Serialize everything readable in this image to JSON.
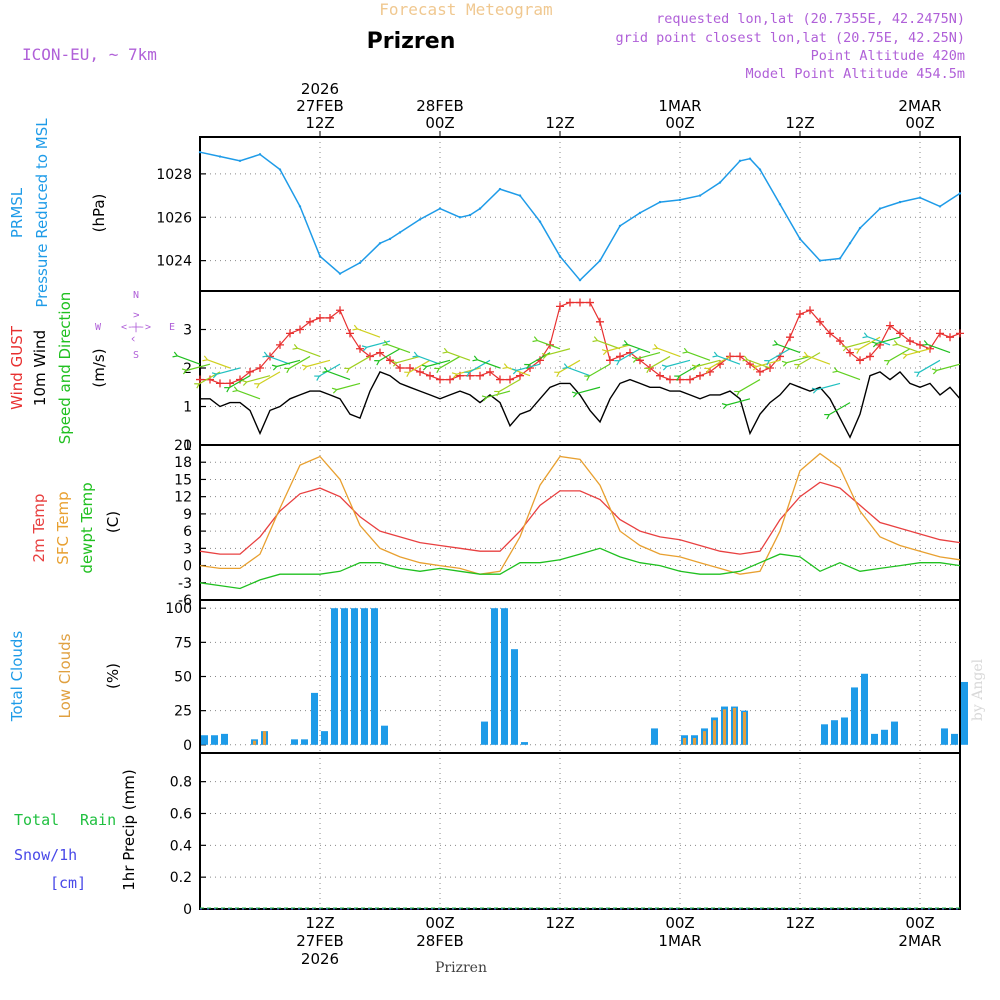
{
  "header": {
    "chart_type": "Forecast Meteogram",
    "location": "Prizren",
    "model": "ICON-EU, ~ 7km",
    "requested": "requested lon,lat (20.7355E, 42.2475N)",
    "grid_point": "grid point closest lon,lat (20.75E, 42.25N)",
    "point_altitude": "Point Altitude 420m",
    "model_altitude": "Model Point Altitude 454.5m",
    "footer_location": "Prizren",
    "watermark": "by Angel"
  },
  "colors": {
    "pressure": "#1e9be8",
    "gust": "#e83030",
    "wind": "#000000",
    "temp2m": "#e84040",
    "sfc": "#e8a030",
    "dewpt": "#20c020",
    "clouds_total": "#1e9be8",
    "clouds_low": "#e0a040",
    "rain": "#20c040",
    "snow": "#4848e8",
    "label_purple": "#b060d8"
  },
  "time_labels": {
    "top": [
      {
        "h": 12,
        "lines": [
          "2026",
          "27FEB",
          "12Z"
        ]
      },
      {
        "h": 24,
        "lines": [
          "28FEB",
          "00Z"
        ]
      },
      {
        "h": 36,
        "lines": [
          "12Z"
        ]
      },
      {
        "h": 48,
        "lines": [
          "1MAR",
          "00Z"
        ]
      },
      {
        "h": 60,
        "lines": [
          "12Z"
        ]
      },
      {
        "h": 72,
        "lines": [
          "2MAR",
          "00Z"
        ]
      }
    ],
    "bottom": [
      {
        "h": 12,
        "lines": [
          "12Z",
          "27FEB",
          "2026"
        ]
      },
      {
        "h": 24,
        "lines": [
          "00Z",
          "28FEB"
        ]
      },
      {
        "h": 36,
        "lines": [
          "12Z"
        ]
      },
      {
        "h": 48,
        "lines": [
          "00Z",
          "1MAR"
        ]
      },
      {
        "h": 60,
        "lines": [
          "12Z"
        ]
      },
      {
        "h": 72,
        "lines": [
          "00Z",
          "2MAR"
        ]
      }
    ]
  },
  "panel_labels": {
    "pressure": {
      "l1": "PRMSL",
      "l2": "Pressure Reduced to MSL",
      "unit": "(hPa)"
    },
    "wind": {
      "l1": "Wind GUST",
      "l2": "10m Wind",
      "l3": "Speed and Direction",
      "unit": "(m/s)",
      "rose_n": "N",
      "rose_s": "S",
      "rose_w": "W",
      "rose_e": "E",
      "rose_ns": "^ | v",
      "rose_we": "<-|->"
    },
    "temp": {
      "l1": "2m Temp",
      "l2": "SFC Temp",
      "l3": "dewpt Temp",
      "unit": "(C)"
    },
    "clouds": {
      "l1": "Total Clouds",
      "l2": "Low Clouds",
      "unit": "(%)"
    },
    "precip": {
      "l1": "Total",
      "l1b": "Rain",
      "l2": "Snow/1h",
      "l3": "[cm]",
      "unit": "1hr Precip (mm)"
    }
  },
  "chart_data": [
    {
      "type": "line",
      "name": "pressure",
      "title": "PRMSL Pressure Reduced to MSL",
      "ylabel": "(hPa)",
      "ylim": [
        1022.6,
        1029.7
      ],
      "yticks": [
        1024,
        1026,
        1028
      ],
      "x_hours": [
        0,
        2,
        4,
        6,
        8,
        10,
        12,
        14,
        16,
        18,
        19,
        20,
        22,
        24,
        26,
        27,
        28,
        30,
        32,
        34,
        36,
        38,
        40,
        42,
        44,
        46,
        48,
        50,
        52,
        54,
        55,
        56,
        58,
        60,
        62,
        64,
        65,
        66,
        68,
        70,
        72,
        74,
        76
      ],
      "values": [
        1029.0,
        1028.8,
        1028.6,
        1028.9,
        1028.2,
        1026.5,
        1024.2,
        1023.4,
        1023.9,
        1024.8,
        1025.0,
        1025.3,
        1025.9,
        1026.4,
        1026.0,
        1026.1,
        1026.4,
        1027.3,
        1027.0,
        1025.8,
        1024.2,
        1023.1,
        1024.0,
        1025.6,
        1026.2,
        1026.7,
        1026.8,
        1027.0,
        1027.6,
        1028.6,
        1028.7,
        1028.2,
        1026.6,
        1025.0,
        1024.0,
        1024.1,
        1024.8,
        1025.5,
        1026.4,
        1026.7,
        1026.9,
        1026.5,
        1027.1
      ]
    },
    {
      "type": "line",
      "name": "wind",
      "title": "Wind GUST / 10m Wind Speed and Direction",
      "ylabel": "(m/s)",
      "ylim": [
        0,
        4
      ],
      "yticks": [
        0,
        1,
        2,
        3
      ],
      "x_hours": [
        0,
        1,
        2,
        3,
        4,
        5,
        6,
        7,
        8,
        9,
        10,
        11,
        12,
        13,
        14,
        15,
        16,
        17,
        18,
        19,
        20,
        21,
        22,
        23,
        24,
        25,
        26,
        27,
        28,
        29,
        30,
        31,
        32,
        33,
        34,
        35,
        36,
        37,
        38,
        39,
        40,
        41,
        42,
        43,
        44,
        45,
        46,
        47,
        48,
        49,
        50,
        51,
        52,
        53,
        54,
        55,
        56,
        57,
        58,
        59,
        60,
        61,
        62,
        63,
        64,
        65,
        66,
        67,
        68,
        69,
        70,
        71,
        72,
        73,
        74,
        75,
        76
      ],
      "series": [
        {
          "name": "Wind GUST",
          "values": [
            1.7,
            1.7,
            1.6,
            1.6,
            1.7,
            1.9,
            2.0,
            2.3,
            2.6,
            2.9,
            3.0,
            3.2,
            3.3,
            3.3,
            3.5,
            2.9,
            2.5,
            2.3,
            2.4,
            2.2,
            2.0,
            2.0,
            1.9,
            1.8,
            1.7,
            1.7,
            1.8,
            1.8,
            1.8,
            1.9,
            1.7,
            1.7,
            1.8,
            2.0,
            2.2,
            2.6,
            3.6,
            3.7,
            3.7,
            3.7,
            3.2,
            2.2,
            2.3,
            2.4,
            2.2,
            2.0,
            1.8,
            1.7,
            1.7,
            1.7,
            1.8,
            1.9,
            2.1,
            2.3,
            2.3,
            2.1,
            1.9,
            2.0,
            2.3,
            2.8,
            3.4,
            3.5,
            3.2,
            2.9,
            2.7,
            2.4,
            2.2,
            2.3,
            2.6,
            3.1,
            2.9,
            2.7,
            2.6,
            2.5,
            2.9,
            2.8,
            2.9
          ]
        },
        {
          "name": "10m Wind",
          "values": [
            1.2,
            1.2,
            1.0,
            1.1,
            1.1,
            0.9,
            0.3,
            0.9,
            1.0,
            1.2,
            1.3,
            1.4,
            1.4,
            1.3,
            1.2,
            0.8,
            0.7,
            1.4,
            1.9,
            1.8,
            1.6,
            1.5,
            1.4,
            1.3,
            1.2,
            1.3,
            1.4,
            1.3,
            1.1,
            1.3,
            1.1,
            0.5,
            0.8,
            0.9,
            1.2,
            1.5,
            1.6,
            1.6,
            1.3,
            0.9,
            0.6,
            1.2,
            1.6,
            1.7,
            1.6,
            1.5,
            1.5,
            1.4,
            1.4,
            1.3,
            1.2,
            1.3,
            1.3,
            1.4,
            1.2,
            0.3,
            0.8,
            1.1,
            1.3,
            1.6,
            1.5,
            1.4,
            1.5,
            1.2,
            0.7,
            0.2,
            0.8,
            1.8,
            1.9,
            1.7,
            1.9,
            1.6,
            1.5,
            1.6,
            1.3,
            1.5,
            1.2
          ]
        }
      ]
    },
    {
      "type": "line",
      "name": "temperature",
      "title": "2m Temp / SFC Temp / dewpt Temp",
      "ylabel": "(C)",
      "ylim": [
        -6,
        21
      ],
      "yticks": [
        -6,
        -3,
        0,
        3,
        6,
        9,
        12,
        15,
        18,
        21
      ],
      "x_hours": [
        0,
        2,
        4,
        6,
        8,
        10,
        12,
        14,
        16,
        18,
        20,
        22,
        24,
        26,
        28,
        30,
        32,
        34,
        36,
        38,
        40,
        42,
        44,
        46,
        48,
        50,
        52,
        54,
        56,
        58,
        60,
        62,
        64,
        66,
        68,
        70,
        72,
        74,
        76
      ],
      "series": [
        {
          "name": "2m Temp",
          "values": [
            2.5,
            2.0,
            2.0,
            5.0,
            9.5,
            12.5,
            13.5,
            12.0,
            8.5,
            6.0,
            5.0,
            4.0,
            3.5,
            3.0,
            2.5,
            2.5,
            6.0,
            10.5,
            13.0,
            13.0,
            11.5,
            8.0,
            6.0,
            5.0,
            4.5,
            3.5,
            2.5,
            2.0,
            2.5,
            8.0,
            12.0,
            14.5,
            13.5,
            10.5,
            7.5,
            6.5,
            5.5,
            4.5,
            4.0
          ]
        },
        {
          "name": "SFC Temp",
          "values": [
            0,
            -0.5,
            -0.5,
            2.0,
            10.0,
            17.5,
            19.0,
            15.0,
            7.0,
            3.0,
            1.5,
            0.5,
            0,
            -0.5,
            -1.5,
            -1.0,
            5.0,
            14.0,
            19.0,
            18.5,
            14.0,
            6.0,
            3.5,
            2.0,
            1.5,
            0.5,
            -0.5,
            -1.5,
            -1.0,
            6.0,
            16.5,
            19.5,
            17.0,
            9.5,
            5.0,
            3.5,
            2.5,
            1.5,
            1.0
          ]
        },
        {
          "name": "dewpt Temp",
          "values": [
            -3.0,
            -3.5,
            -4.0,
            -2.5,
            -1.5,
            -1.5,
            -1.5,
            -1.0,
            0.5,
            0.5,
            -0.5,
            -1.0,
            -0.5,
            -1.0,
            -1.5,
            -1.5,
            0.5,
            0.5,
            1.0,
            2.0,
            3.0,
            1.5,
            0.5,
            0,
            -1.0,
            -1.5,
            -1.5,
            -1.0,
            0.5,
            2.0,
            1.5,
            -1.0,
            0.5,
            -1.0,
            -0.5,
            0,
            0.5,
            0.5,
            0
          ]
        }
      ]
    },
    {
      "type": "bar",
      "name": "clouds",
      "title": "Total Clouds / Low Clouds",
      "ylabel": "(%)",
      "ylim": [
        -6,
        106
      ],
      "yticks": [
        0,
        25,
        50,
        75,
        100
      ],
      "x_hours": [
        0,
        1,
        2,
        3,
        4,
        5,
        6,
        7,
        8,
        9,
        10,
        11,
        12,
        13,
        14,
        15,
        16,
        17,
        18,
        19,
        20,
        21,
        22,
        23,
        24,
        25,
        26,
        27,
        28,
        29,
        30,
        31,
        32,
        33,
        34,
        35,
        36,
        37,
        38,
        39,
        40,
        41,
        42,
        43,
        44,
        45,
        46,
        47,
        48,
        49,
        50,
        51,
        52,
        53,
        54,
        55,
        56,
        57,
        58,
        59,
        60,
        61,
        62,
        63,
        64,
        65,
        66,
        67,
        68,
        69,
        70,
        71,
        72,
        73,
        74,
        75,
        76
      ],
      "series": [
        {
          "name": "Total Clouds",
          "values": [
            7,
            7,
            8,
            0,
            0,
            4,
            10,
            0,
            0,
            4,
            4,
            38,
            10,
            100,
            100,
            100,
            100,
            100,
            14,
            0,
            0,
            0,
            0,
            0,
            0,
            0,
            0,
            0,
            17,
            100,
            100,
            70,
            2,
            0,
            0,
            0,
            0,
            0,
            0,
            0,
            0,
            0,
            0,
            0,
            0,
            12,
            0,
            0,
            7,
            7,
            12,
            20,
            28,
            28,
            25,
            0,
            0,
            0,
            0,
            0,
            0,
            0,
            15,
            18,
            20,
            42,
            52,
            8,
            11,
            17,
            0,
            0,
            0,
            0,
            12,
            8,
            46
          ]
        },
        {
          "name": "Low Clouds",
          "values": [
            0,
            0,
            0,
            0,
            0,
            3,
            10,
            0,
            0,
            0,
            0,
            0,
            0,
            0,
            0,
            0,
            0,
            0,
            0,
            0,
            0,
            0,
            0,
            0,
            0,
            0,
            0,
            0,
            0,
            0,
            0,
            0,
            0,
            0,
            0,
            0,
            0,
            0,
            0,
            0,
            0,
            0,
            0,
            0,
            0,
            0,
            0,
            0,
            5,
            5,
            10,
            18,
            26,
            27,
            24,
            0,
            0,
            0,
            0,
            0,
            0,
            0,
            0,
            0,
            0,
            0,
            0,
            0,
            0,
            0,
            0,
            0,
            0,
            0,
            0,
            0,
            0
          ]
        }
      ]
    },
    {
      "type": "bar",
      "name": "precipitation",
      "title": "1hr Precip",
      "ylabel": "1hr Precip (mm)",
      "ylim": [
        0,
        0.98
      ],
      "yticks": [
        0,
        0.2,
        0.4,
        0.6,
        0.8
      ],
      "ytick_labels": [
        "0",
        "0.2",
        "0.4",
        "0.6",
        "0.8"
      ],
      "x_hours": [
        0,
        76
      ],
      "series": [
        {
          "name": "Total Rain",
          "values": [
            0,
            0
          ]
        },
        {
          "name": "Snow/1h",
          "values": [
            0,
            0
          ]
        }
      ]
    }
  ]
}
